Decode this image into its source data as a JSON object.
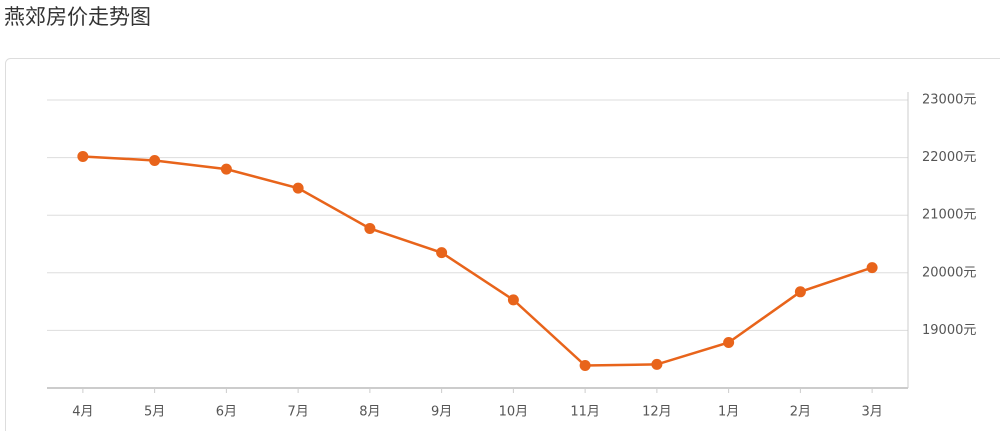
{
  "chart_data": {
    "type": "line",
    "title": "燕郊房价走势图",
    "categories": [
      "4月",
      "5月",
      "6月",
      "7月",
      "8月",
      "9月",
      "10月",
      "11月",
      "12月",
      "1月",
      "2月",
      "3月"
    ],
    "values": [
      22020,
      21950,
      21800,
      21470,
      20770,
      20350,
      19530,
      18390,
      18410,
      18790,
      19670,
      20090
    ],
    "color": "#e8641b",
    "ylim": [
      18000,
      23000
    ],
    "yticks": [
      {
        "value": 19000,
        "label": "19000元"
      },
      {
        "value": 20000,
        "label": "20000元"
      },
      {
        "value": 21000,
        "label": "21000元"
      },
      {
        "value": 22000,
        "label": "22000元"
      },
      {
        "value": 23000,
        "label": "23000元"
      }
    ],
    "grid": true
  }
}
